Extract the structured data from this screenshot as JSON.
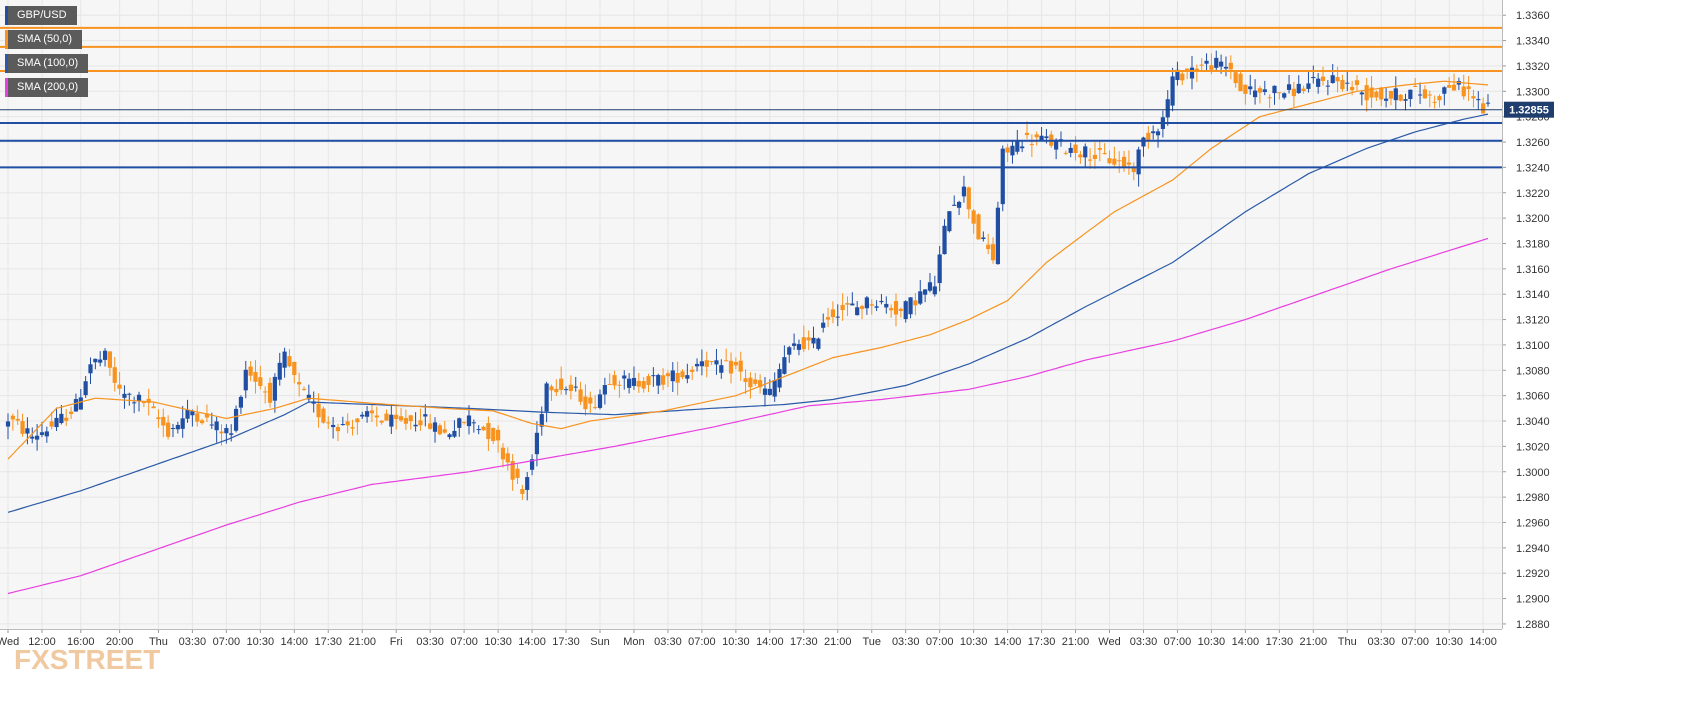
{
  "instrument": "GBP/USD",
  "legend": [
    {
      "label": "GBP/USD",
      "color": "#1f4ea3"
    },
    {
      "label": "SMA (50,0)",
      "color": "#f7931e"
    },
    {
      "label": "SMA (100,0)",
      "color": "#2a5aa8"
    },
    {
      "label": "SMA (200,0)",
      "color": "#e83fe0"
    }
  ],
  "watermark": "FXSTREET",
  "colors": {
    "bull": "#1f4ea3",
    "bear": "#f7931e",
    "sma50": "#f7931e",
    "sma100": "#2a5aa8",
    "sma200": "#e83fe0",
    "resistance": "#f7931e",
    "support": "#1f4ea3",
    "grid": "#e6e6e6",
    "plot_bg": "#f6f6f6",
    "price_tag_bg": "#1f3e6e"
  },
  "chart_data": {
    "type": "candlestick",
    "title": "",
    "xlabel": "",
    "ylabel": "",
    "ylim": [
      1.2876,
      1.3372
    ],
    "grid": true,
    "y_ticks": [
      "1.2880",
      "1.2900",
      "1.2920",
      "1.2940",
      "1.2960",
      "1.2980",
      "1.3000",
      "1.3020",
      "1.3040",
      "1.3060",
      "1.3080",
      "1.3100",
      "1.3120",
      "1.3140",
      "1.3160",
      "1.3180",
      "1.3200",
      "1.3220",
      "1.3240",
      "1.3260",
      "1.3280",
      "1.3300",
      "1.3320",
      "1.3340",
      "1.3360"
    ],
    "x_ticks": [
      {
        "bar": 0,
        "label": "Wed"
      },
      {
        "bar": 7,
        "label": "12:00"
      },
      {
        "bar": 15,
        "label": "16:00"
      },
      {
        "bar": 23,
        "label": "20:00"
      },
      {
        "bar": 31,
        "label": "Thu"
      },
      {
        "bar": 38,
        "label": "03:30"
      },
      {
        "bar": 45,
        "label": "07:00"
      },
      {
        "bar": 52,
        "label": "10:30"
      },
      {
        "bar": 59,
        "label": "14:00"
      },
      {
        "bar": 66,
        "label": "17:30"
      },
      {
        "bar": 73,
        "label": "21:00"
      },
      {
        "bar": 80,
        "label": "Fri"
      },
      {
        "bar": 87,
        "label": "03:30"
      },
      {
        "bar": 94,
        "label": "07:00"
      },
      {
        "bar": 101,
        "label": "10:30"
      },
      {
        "bar": 108,
        "label": "14:00"
      },
      {
        "bar": 115,
        "label": "17:30"
      },
      {
        "bar": 122,
        "label": "Sun"
      },
      {
        "bar": 129,
        "label": "Mon"
      },
      {
        "bar": 136,
        "label": "03:30"
      },
      {
        "bar": 143,
        "label": "07:00"
      },
      {
        "bar": 150,
        "label": "10:30"
      },
      {
        "bar": 157,
        "label": "14:00"
      },
      {
        "bar": 164,
        "label": "17:30"
      },
      {
        "bar": 171,
        "label": "21:00"
      },
      {
        "bar": 178,
        "label": "Tue"
      },
      {
        "bar": 185,
        "label": "03:30"
      },
      {
        "bar": 192,
        "label": "07:00"
      },
      {
        "bar": 199,
        "label": "10:30"
      },
      {
        "bar": 206,
        "label": "14:00"
      },
      {
        "bar": 213,
        "label": "17:30"
      },
      {
        "bar": 220,
        "label": "21:00"
      },
      {
        "bar": 227,
        "label": "Wed"
      },
      {
        "bar": 234,
        "label": "03:30"
      },
      {
        "bar": 241,
        "label": "07:00"
      },
      {
        "bar": 248,
        "label": "10:30"
      },
      {
        "bar": 255,
        "label": "14:00"
      },
      {
        "bar": 262,
        "label": "17:30"
      },
      {
        "bar": 269,
        "label": "21:00"
      },
      {
        "bar": 276,
        "label": "Thu"
      },
      {
        "bar": 283,
        "label": "03:30"
      },
      {
        "bar": 290,
        "label": "07:00"
      },
      {
        "bar": 297,
        "label": "10:30"
      },
      {
        "bar": 304,
        "label": "14:00"
      }
    ],
    "last_price": "1.32855",
    "horizontal_levels": [
      {
        "kind": "resistance",
        "value": 1.335
      },
      {
        "kind": "resistance",
        "value": 1.3335
      },
      {
        "kind": "resistance",
        "value": 1.3316
      },
      {
        "kind": "support",
        "value": 1.3275
      },
      {
        "kind": "support",
        "value": 1.3261
      },
      {
        "kind": "support",
        "value": 1.324
      }
    ],
    "sma_anchors": {
      "sma50": [
        [
          0,
          1.301
        ],
        [
          10,
          1.305
        ],
        [
          18,
          1.3058
        ],
        [
          30,
          1.3055
        ],
        [
          45,
          1.3042
        ],
        [
          55,
          1.305
        ],
        [
          62,
          1.3058
        ],
        [
          75,
          1.3054
        ],
        [
          90,
          1.305
        ],
        [
          100,
          1.3048
        ],
        [
          108,
          1.3038
        ],
        [
          114,
          1.3034
        ],
        [
          120,
          1.304
        ],
        [
          135,
          1.3048
        ],
        [
          150,
          1.306
        ],
        [
          160,
          1.3075
        ],
        [
          170,
          1.309
        ],
        [
          180,
          1.3098
        ],
        [
          190,
          1.3108
        ],
        [
          198,
          1.312
        ],
        [
          206,
          1.3135
        ],
        [
          214,
          1.3165
        ],
        [
          222,
          1.3188
        ],
        [
          228,
          1.3205
        ],
        [
          240,
          1.323
        ],
        [
          248,
          1.3255
        ],
        [
          258,
          1.328
        ],
        [
          268,
          1.329
        ],
        [
          278,
          1.33
        ],
        [
          288,
          1.3305
        ],
        [
          296,
          1.3308
        ],
        [
          305,
          1.3305
        ]
      ],
      "sma100": [
        [
          0,
          1.2968
        ],
        [
          15,
          1.2985
        ],
        [
          30,
          1.3005
        ],
        [
          45,
          1.3025
        ],
        [
          57,
          1.3045
        ],
        [
          62,
          1.3055
        ],
        [
          75,
          1.3053
        ],
        [
          95,
          1.305
        ],
        [
          110,
          1.3047
        ],
        [
          125,
          1.3045
        ],
        [
          145,
          1.305
        ],
        [
          160,
          1.3053
        ],
        [
          170,
          1.3057
        ],
        [
          185,
          1.3068
        ],
        [
          198,
          1.3085
        ],
        [
          210,
          1.3105
        ],
        [
          222,
          1.313
        ],
        [
          240,
          1.3165
        ],
        [
          255,
          1.3205
        ],
        [
          268,
          1.3235
        ],
        [
          280,
          1.3255
        ],
        [
          290,
          1.3268
        ],
        [
          300,
          1.3278
        ],
        [
          305,
          1.3282
        ]
      ],
      "sma200": [
        [
          0,
          1.2904
        ],
        [
          15,
          1.2918
        ],
        [
          30,
          1.2938
        ],
        [
          45,
          1.2958
        ],
        [
          60,
          1.2976
        ],
        [
          75,
          1.299
        ],
        [
          95,
          1.3
        ],
        [
          110,
          1.301
        ],
        [
          125,
          1.302
        ],
        [
          145,
          1.3035
        ],
        [
          165,
          1.3052
        ],
        [
          180,
          1.3057
        ],
        [
          198,
          1.3065
        ],
        [
          210,
          1.3075
        ],
        [
          222,
          1.3088
        ],
        [
          240,
          1.3103
        ],
        [
          255,
          1.312
        ],
        [
          270,
          1.314
        ],
        [
          285,
          1.316
        ],
        [
          295,
          1.3172
        ],
        [
          305,
          1.3184
        ]
      ]
    },
    "candle_anchors": [
      [
        0,
        1.3042
      ],
      [
        5,
        1.3028
      ],
      [
        10,
        1.3038
      ],
      [
        14,
        1.3052
      ],
      [
        17,
        1.3085
      ],
      [
        20,
        1.309
      ],
      [
        23,
        1.3062
      ],
      [
        28,
        1.3055
      ],
      [
        33,
        1.3032
      ],
      [
        38,
        1.3048
      ],
      [
        43,
        1.3035
      ],
      [
        46,
        1.303
      ],
      [
        49,
        1.3082
      ],
      [
        54,
        1.306
      ],
      [
        57,
        1.309
      ],
      [
        60,
        1.3065
      ],
      [
        65,
        1.3042
      ],
      [
        69,
        1.3036
      ],
      [
        75,
        1.3044
      ],
      [
        80,
        1.3038
      ],
      [
        85,
        1.3042
      ],
      [
        90,
        1.303
      ],
      [
        95,
        1.3042
      ],
      [
        100,
        1.3028
      ],
      [
        103,
        1.3008
      ],
      [
        106,
        1.2982
      ],
      [
        108,
        1.301
      ],
      [
        111,
        1.307
      ],
      [
        114,
        1.3068
      ],
      [
        118,
        1.306
      ],
      [
        120,
        1.305
      ],
      [
        124,
        1.3075
      ],
      [
        128,
        1.307
      ],
      [
        135,
        1.3073
      ],
      [
        140,
        1.3078
      ],
      [
        143,
        1.309
      ],
      [
        146,
        1.3082
      ],
      [
        150,
        1.3082
      ],
      [
        153,
        1.3068
      ],
      [
        157,
        1.3062
      ],
      [
        160,
        1.309
      ],
      [
        163,
        1.3102
      ],
      [
        166,
        1.31
      ],
      [
        168,
        1.312
      ],
      [
        171,
        1.3128
      ],
      [
        175,
        1.313
      ],
      [
        178,
        1.3135
      ],
      [
        182,
        1.313
      ],
      [
        184,
        1.3126
      ],
      [
        188,
        1.314
      ],
      [
        191,
        1.3148
      ],
      [
        194,
        1.321
      ],
      [
        197,
        1.3222
      ],
      [
        200,
        1.3186
      ],
      [
        203,
        1.3168
      ],
      [
        205,
        1.325
      ],
      [
        209,
        1.3262
      ],
      [
        213,
        1.3262
      ],
      [
        218,
        1.3256
      ],
      [
        222,
        1.3252
      ],
      [
        227,
        1.3246
      ],
      [
        232,
        1.324
      ],
      [
        234,
        1.3262
      ],
      [
        238,
        1.3278
      ],
      [
        240,
        1.331
      ],
      [
        244,
        1.3318
      ],
      [
        248,
        1.3322
      ],
      [
        252,
        1.3318
      ],
      [
        254,
        1.33
      ],
      [
        259,
        1.33
      ],
      [
        264,
        1.33
      ],
      [
        269,
        1.3306
      ],
      [
        273,
        1.331
      ],
      [
        276,
        1.3305
      ],
      [
        280,
        1.3298
      ],
      [
        285,
        1.3296
      ],
      [
        290,
        1.33
      ],
      [
        294,
        1.3294
      ],
      [
        297,
        1.3305
      ],
      [
        301,
        1.33
      ],
      [
        304,
        1.3286
      ]
    ]
  }
}
